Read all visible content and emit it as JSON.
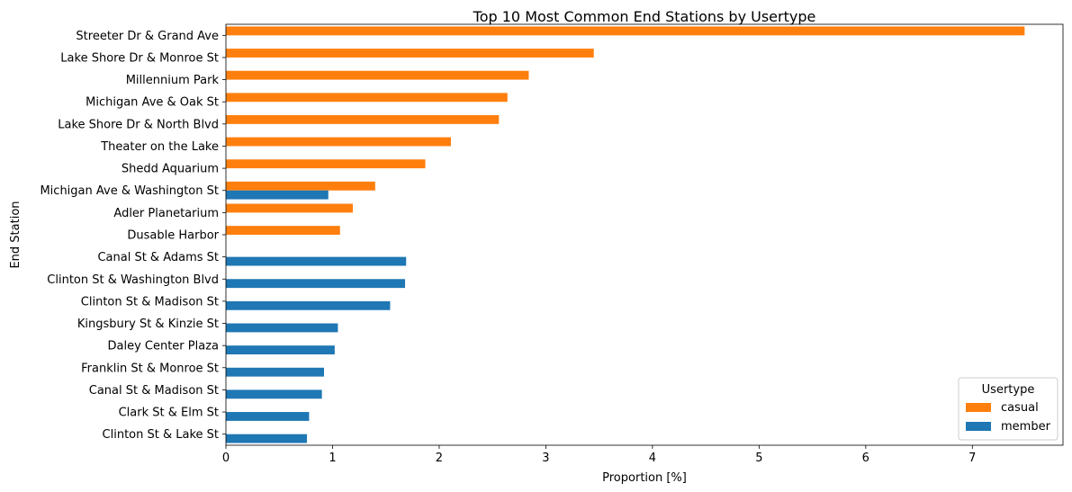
{
  "chart_data": {
    "type": "bar",
    "orientation": "horizontal",
    "title": "Top 10 Most Common End Stations by Usertype",
    "xlabel": "Proportion [%]",
    "ylabel": "End Station",
    "xlim": [
      0,
      7.85
    ],
    "xticks": [
      "0",
      "1",
      "2",
      "3",
      "4",
      "5",
      "6",
      "7"
    ],
    "grid": false,
    "legend": {
      "title": "Usertype",
      "position": "lower-right"
    },
    "categories": [
      "Streeter Dr & Grand Ave",
      "Lake Shore Dr & Monroe St",
      "Millennium Park",
      "Michigan Ave & Oak St",
      "Lake Shore Dr & North Blvd",
      "Theater on the Lake",
      "Shedd Aquarium",
      "Michigan Ave & Washington St",
      "Adler Planetarium",
      "Dusable Harbor",
      "Canal St & Adams St",
      "Clinton St & Washington Blvd",
      "Clinton St & Madison St",
      "Kingsbury St & Kinzie St",
      "Daley Center Plaza",
      "Franklin St & Monroe St",
      "Canal St & Madison St",
      "Clark St & Elm St",
      "Clinton St & Lake St"
    ],
    "series": [
      {
        "name": "casual",
        "color": "#ff7f0e",
        "values": [
          7.49,
          3.45,
          2.84,
          2.64,
          2.56,
          2.11,
          1.87,
          1.4,
          1.19,
          1.07,
          null,
          null,
          null,
          null,
          null,
          null,
          null,
          null,
          null
        ]
      },
      {
        "name": "member",
        "color": "#1f77b4",
        "values": [
          null,
          null,
          null,
          null,
          null,
          null,
          null,
          0.96,
          null,
          null,
          1.69,
          1.68,
          1.54,
          1.05,
          1.02,
          0.92,
          0.9,
          0.78,
          0.76
        ]
      }
    ]
  }
}
